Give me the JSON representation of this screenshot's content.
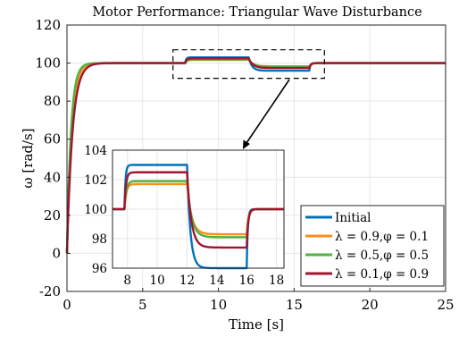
{
  "chart_data": {
    "type": "line",
    "title": "Motor Performance: Triangular Wave Disturbance",
    "xlabel": "Time [s]",
    "ylabel": "ω [rad/s]",
    "xlim": [
      0,
      25
    ],
    "ylim": [
      -20,
      120
    ],
    "xticks": [
      "0",
      "5",
      "10",
      "15",
      "20",
      "25"
    ],
    "yticks": [
      "-20",
      "0",
      "20",
      "40",
      "60",
      "80",
      "100",
      "120"
    ],
    "grid": true,
    "legend_position": "bottom-right",
    "series": [
      {
        "name": "Initial",
        "color": "#0072BD",
        "tau": 0.28,
        "plateau": 103.0,
        "valley": 96.0,
        "rise_up": 0.07,
        "rise_down": 0.22
      },
      {
        "name": "λ = 0.9,φ = 0.1",
        "color": "#FF8C1A",
        "tau": 0.3,
        "plateau": 101.7,
        "valley": 98.3,
        "rise_up": 0.12,
        "rise_down": 0.3
      },
      {
        "name": "λ = 0.5,φ = 0.5",
        "color": "#4FB33E",
        "tau": 0.26,
        "plateau": 101.9,
        "valley": 98.1,
        "rise_up": 0.12,
        "rise_down": 0.3
      },
      {
        "name": "λ = 0.1,φ = 0.9",
        "color": "#A2142F",
        "tau": 0.36,
        "plateau": 102.5,
        "valley": 97.4,
        "rise_up": 0.1,
        "rise_down": 0.28
      }
    ],
    "disturbance": {
      "rise_start": 7.8,
      "fall_start": 12.0,
      "recover_start": 16.0
    },
    "inset": {
      "xlim": [
        7,
        18.5
      ],
      "ylim": [
        96,
        104
      ],
      "xticks": [
        "8",
        "10",
        "12",
        "14",
        "16",
        "18"
      ],
      "yticks": [
        "96",
        "98",
        "100",
        "102",
        "104"
      ]
    },
    "zoom_box": {
      "x": [
        7,
        17
      ],
      "y": [
        92,
        107
      ]
    }
  }
}
